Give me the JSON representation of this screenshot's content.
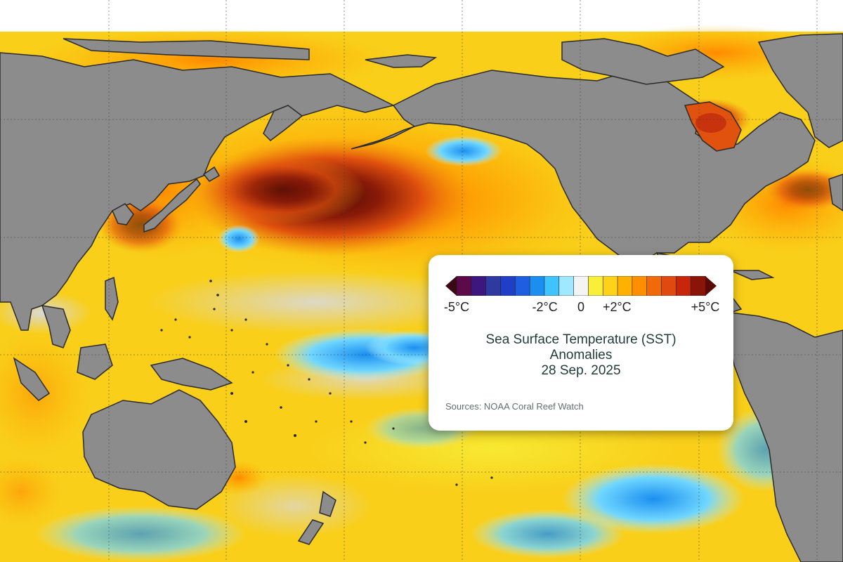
{
  "map": {
    "ocean_palette": {
      "gray_no_data": "#9c9c9c",
      "land": "#8c8c8c",
      "neutral": "#d9d9d9",
      "warm": [
        "#f6ea1a",
        "#ffd21a",
        "#ffb000",
        "#ff8a00",
        "#f05a12",
        "#c8320c",
        "#8a1a08",
        "#4a0c04"
      ],
      "cool": [
        "#9fe8ff",
        "#3fc4ff",
        "#1b8ff0",
        "#1a4fd6"
      ]
    },
    "land_color": "#8c8c8c",
    "ocean_base": "#f9cf1a",
    "coastline_color": "#2a2a2a",
    "grid_color": "#444444"
  },
  "legend": {
    "scale_colors": [
      "#3a0a14",
      "#5c0a4a",
      "#3e1680",
      "#2e3aa0",
      "#1f3fc8",
      "#1f5ee0",
      "#1b8ff0",
      "#3fc4ff",
      "#9fe8ff",
      "#f4f4f4",
      "#f7ef38",
      "#ffd21a",
      "#ffb000",
      "#ff8f00",
      "#f06a0c",
      "#e04a10",
      "#c8260a",
      "#8a1408",
      "#5a0a06"
    ],
    "ticks": [
      {
        "label": "-5°C",
        "pos": 0.0
      },
      {
        "label": "-2°C",
        "pos": 0.355
      },
      {
        "label": "0",
        "pos": 0.5
      },
      {
        "label": "+2°C",
        "pos": 0.645
      },
      {
        "label": "+5°C",
        "pos": 1.0
      }
    ],
    "title_lines": [
      "Sea Surface Temperature (SST)",
      "Anomalies",
      "28 Sep. 2025"
    ],
    "source": "Sources:  NOAA Coral Reef Watch"
  }
}
